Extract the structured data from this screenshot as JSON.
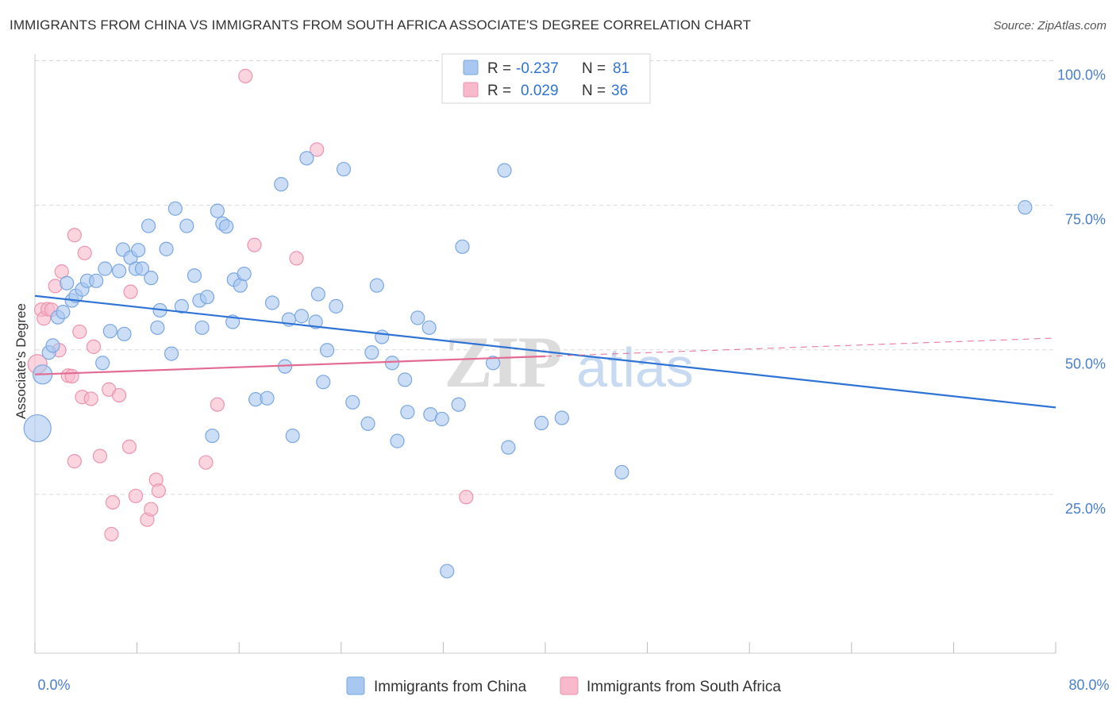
{
  "title": "IMMIGRANTS FROM CHINA VS IMMIGRANTS FROM SOUTH AFRICA ASSOCIATE'S DEGREE CORRELATION CHART",
  "source": "Source: ZipAtlas.com",
  "watermark": {
    "zip": "ZIP",
    "atlas": "atlas"
  },
  "colors": {
    "china_fill": "#a9c8f0",
    "china_stroke": "#7aa7e3",
    "china_line": "#2f73d4",
    "sa_fill": "#f7b9cb",
    "sa_stroke": "#ee93ae",
    "sa_line": "#e36b93",
    "axis_text": "#4a7fcf",
    "grid": "#d9d9d9"
  },
  "legend": {
    "rows": [
      {
        "r_label": "R =",
        "r_value": "-0.237",
        "n_label": "N =",
        "n_value": "81"
      },
      {
        "r_label": "R =",
        "r_value": "0.029",
        "n_label": "N =",
        "n_value": "36"
      }
    ]
  },
  "chart_data": {
    "type": "scatter",
    "xlabel": "",
    "ylabel": "Associate's Degree",
    "xlim": [
      0,
      80
    ],
    "ylim": [
      0,
      105
    ],
    "x_ticks": [
      "0.0%",
      "80.0%"
    ],
    "y_ticks": [
      {
        "value": 100,
        "label": "100.0%"
      },
      {
        "value": 75,
        "label": "75.0%"
      },
      {
        "value": 50,
        "label": "50.0%"
      },
      {
        "value": 25,
        "label": "25.0%"
      }
    ],
    "grid": "horizontal dashed",
    "legend_position": "top-center",
    "series": [
      {
        "name": "Immigrants from China",
        "r": -0.237,
        "n": 81,
        "trend": {
          "x0": 0,
          "y0": 61.8,
          "x1": 80,
          "y1": 42.5
        },
        "points": [
          [
            0.2,
            38.9,
            3
          ],
          [
            0.6,
            48.2,
            2
          ],
          [
            1.1,
            52.0,
            1
          ],
          [
            1.4,
            53.2,
            1
          ],
          [
            1.8,
            58.1,
            1
          ],
          [
            2.2,
            59.0,
            1
          ],
          [
            2.5,
            64.0,
            1
          ],
          [
            2.9,
            61.0,
            1
          ],
          [
            3.2,
            61.8,
            1
          ],
          [
            3.7,
            62.9,
            1
          ],
          [
            4.1,
            64.4,
            1
          ],
          [
            4.8,
            64.4,
            1
          ],
          [
            5.3,
            50.2,
            1
          ],
          [
            5.5,
            66.5,
            1
          ],
          [
            5.9,
            55.7,
            1
          ],
          [
            6.6,
            66.1,
            1
          ],
          [
            6.9,
            69.8,
            1
          ],
          [
            7.0,
            55.2,
            1
          ],
          [
            7.5,
            68.4,
            1
          ],
          [
            7.9,
            66.5,
            1
          ],
          [
            8.1,
            69.7,
            1
          ],
          [
            8.4,
            66.5,
            1
          ],
          [
            8.9,
            73.9,
            1
          ],
          [
            9.1,
            64.9,
            1
          ],
          [
            9.6,
            56.3,
            1
          ],
          [
            9.8,
            59.3,
            1
          ],
          [
            10.3,
            69.9,
            1
          ],
          [
            10.7,
            51.8,
            1
          ],
          [
            11.0,
            76.9,
            1
          ],
          [
            11.5,
            60.0,
            1
          ],
          [
            11.9,
            73.9,
            1
          ],
          [
            12.5,
            65.3,
            1
          ],
          [
            12.9,
            61.0,
            1
          ],
          [
            13.1,
            56.3,
            1
          ],
          [
            13.5,
            61.6,
            1
          ],
          [
            13.9,
            37.6,
            1
          ],
          [
            14.3,
            76.5,
            1
          ],
          [
            14.7,
            74.3,
            1
          ],
          [
            15.0,
            73.8,
            1
          ],
          [
            15.5,
            57.3,
            1
          ],
          [
            15.6,
            64.6,
            1
          ],
          [
            16.1,
            63.6,
            1
          ],
          [
            16.4,
            65.6,
            1
          ],
          [
            17.3,
            43.9,
            1
          ],
          [
            18.2,
            44.1,
            1
          ],
          [
            18.6,
            60.6,
            1
          ],
          [
            19.3,
            81.1,
            1
          ],
          [
            19.6,
            49.6,
            1
          ],
          [
            19.9,
            57.7,
            1
          ],
          [
            20.2,
            37.6,
            1
          ],
          [
            20.9,
            58.3,
            1
          ],
          [
            21.3,
            85.6,
            1
          ],
          [
            22.0,
            57.3,
            1
          ],
          [
            22.2,
            62.1,
            1
          ],
          [
            22.6,
            46.9,
            1
          ],
          [
            22.9,
            52.4,
            1
          ],
          [
            23.6,
            60.0,
            1
          ],
          [
            24.2,
            83.7,
            1
          ],
          [
            24.9,
            43.4,
            1
          ],
          [
            26.1,
            39.7,
            1
          ],
          [
            26.4,
            52.0,
            1
          ],
          [
            26.8,
            63.6,
            1
          ],
          [
            27.2,
            54.7,
            1
          ],
          [
            28.0,
            50.2,
            1
          ],
          [
            28.4,
            36.7,
            1
          ],
          [
            29.0,
            47.3,
            1
          ],
          [
            29.2,
            41.7,
            1
          ],
          [
            30.0,
            58.0,
            1
          ],
          [
            30.9,
            56.3,
            1
          ],
          [
            31.0,
            41.3,
            1
          ],
          [
            31.9,
            40.5,
            1
          ],
          [
            32.3,
            14.2,
            1
          ],
          [
            33.2,
            43.0,
            1
          ],
          [
            33.5,
            70.3,
            1
          ],
          [
            35.9,
            50.2,
            1
          ],
          [
            36.8,
            83.5,
            1
          ],
          [
            37.1,
            35.6,
            1
          ],
          [
            39.7,
            39.8,
            1
          ],
          [
            41.3,
            40.7,
            1
          ],
          [
            46.0,
            31.3,
            1
          ],
          [
            77.6,
            77.1,
            1
          ]
        ]
      },
      {
        "name": "Immigrants from South Africa",
        "r": 0.029,
        "n": 36,
        "trend": {
          "x0": 0,
          "y0": 48.2,
          "x1": 80,
          "y1": 54.5
        },
        "points": [
          [
            0.2,
            50.0,
            2
          ],
          [
            0.5,
            59.4,
            1
          ],
          [
            0.7,
            57.9,
            1
          ],
          [
            1.0,
            59.5,
            1
          ],
          [
            1.3,
            59.4,
            1
          ],
          [
            1.6,
            63.5,
            1
          ],
          [
            1.9,
            52.4,
            1
          ],
          [
            2.1,
            66.0,
            1
          ],
          [
            2.6,
            48.0,
            1
          ],
          [
            2.9,
            47.9,
            1
          ],
          [
            3.1,
            33.2,
            1
          ],
          [
            3.1,
            72.3,
            1
          ],
          [
            3.5,
            55.6,
            1
          ],
          [
            3.7,
            44.3,
            1
          ],
          [
            3.9,
            69.2,
            1
          ],
          [
            4.4,
            44.0,
            1
          ],
          [
            4.6,
            53.0,
            1
          ],
          [
            5.1,
            34.1,
            1
          ],
          [
            5.8,
            45.6,
            1
          ],
          [
            6.0,
            20.6,
            1
          ],
          [
            6.1,
            26.1,
            1
          ],
          [
            6.6,
            44.6,
            1
          ],
          [
            7.4,
            35.7,
            1
          ],
          [
            7.5,
            62.5,
            1
          ],
          [
            7.9,
            27.2,
            1
          ],
          [
            8.8,
            23.1,
            1
          ],
          [
            9.1,
            24.9,
            1
          ],
          [
            9.5,
            30.0,
            1
          ],
          [
            9.7,
            28.1,
            1
          ],
          [
            13.4,
            33.0,
            1
          ],
          [
            14.3,
            43.0,
            1
          ],
          [
            16.5,
            99.8,
            1
          ],
          [
            17.2,
            70.6,
            1
          ],
          [
            20.5,
            68.3,
            1
          ],
          [
            22.1,
            87.1,
            1
          ],
          [
            33.8,
            27.0,
            1
          ]
        ]
      }
    ]
  }
}
